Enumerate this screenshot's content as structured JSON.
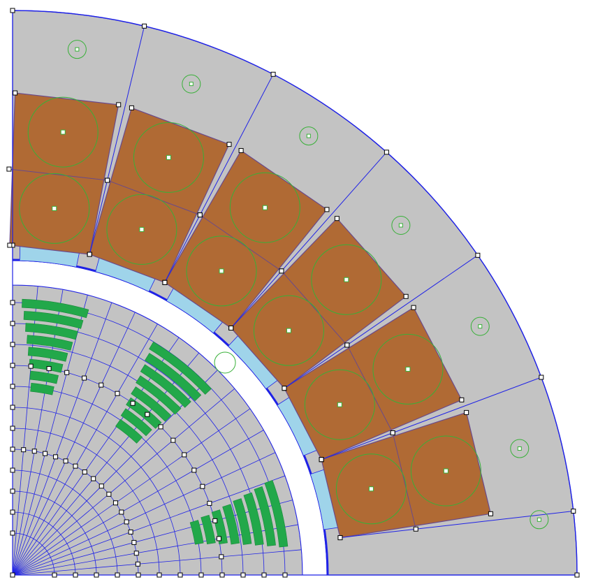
{
  "colors": {
    "background": "#ffffff",
    "stator_fill": "#c3c3c3",
    "boundary_line": "#1f22e6",
    "copper_slot": "#b06a34",
    "copper_edge": "#6a4a8a",
    "conductor_circle": "#38b038",
    "airgap_fill": "#9fd4ea",
    "magnet_fill": "#22a84a",
    "node_marker": "#000000",
    "label_marker": "#38b038"
  },
  "icons": {
    "node": "square-node-marker",
    "block_label": "circle-block-label-marker"
  },
  "layers": {
    "stator_teeth": 7,
    "coil_slots": 6,
    "conductors_per_slot": 2,
    "magnet_poles": 3
  }
}
